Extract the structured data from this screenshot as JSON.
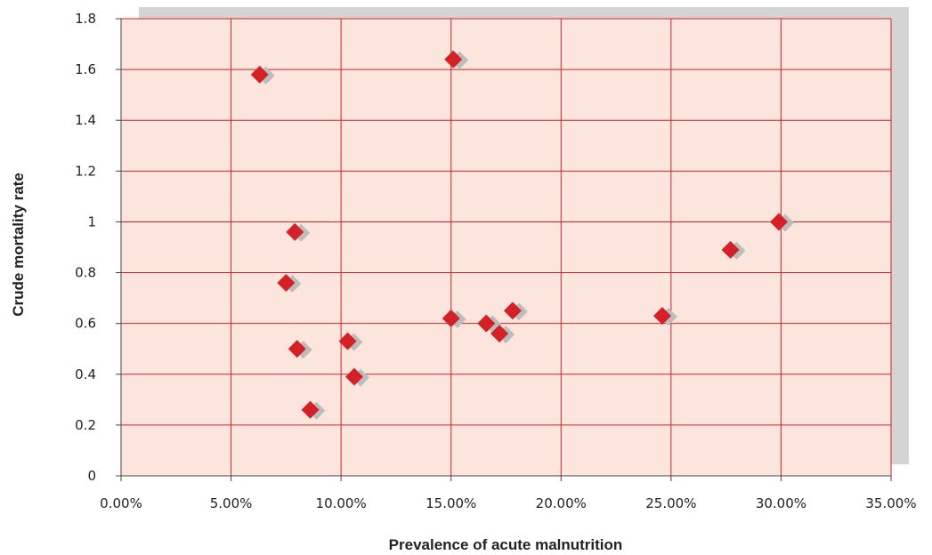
{
  "chart_data": {
    "type": "scatter",
    "title": "",
    "xlabel": "Prevalence of acute malnutrition",
    "ylabel": "Crude mortality rate",
    "xlim": [
      0,
      35
    ],
    "ylim": [
      0,
      1.8
    ],
    "x_unit": "percent",
    "grid": true,
    "x_ticks": [
      0,
      5,
      10,
      15,
      20,
      25,
      30,
      35
    ],
    "x_tick_labels": [
      "0.00%",
      "5.00%",
      "10.00%",
      "15.00%",
      "20.00%",
      "25.00%",
      "30.00%",
      "35.00%"
    ],
    "y_ticks": [
      0,
      0.2,
      0.4,
      0.6,
      0.8,
      1,
      1.2,
      1.4,
      1.6,
      1.8
    ],
    "y_tick_labels": [
      "0",
      "0.2",
      "0.4",
      "0.6",
      "0.8",
      "1",
      "1.2",
      "1.4",
      "1.6",
      "1.8"
    ],
    "marker": "diamond",
    "points": [
      {
        "x": 6.3,
        "y": 1.58
      },
      {
        "x": 15.1,
        "y": 1.64
      },
      {
        "x": 7.9,
        "y": 0.96
      },
      {
        "x": 7.5,
        "y": 0.76
      },
      {
        "x": 8.0,
        "y": 0.5
      },
      {
        "x": 8.6,
        "y": 0.26
      },
      {
        "x": 10.3,
        "y": 0.53
      },
      {
        "x": 10.6,
        "y": 0.39
      },
      {
        "x": 15.0,
        "y": 0.62
      },
      {
        "x": 16.6,
        "y": 0.6
      },
      {
        "x": 17.2,
        "y": 0.56
      },
      {
        "x": 17.8,
        "y": 0.65
      },
      {
        "x": 24.6,
        "y": 0.63
      },
      {
        "x": 27.7,
        "y": 0.89
      },
      {
        "x": 29.9,
        "y": 1.0
      }
    ]
  },
  "colors": {
    "plot_background": "#fce5dd",
    "gridline": "#d42128",
    "marker": "#d42128",
    "marker_shadow": "#bcbcbc",
    "frame_shadow": "#d4d4d4",
    "axis": "#444444"
  }
}
